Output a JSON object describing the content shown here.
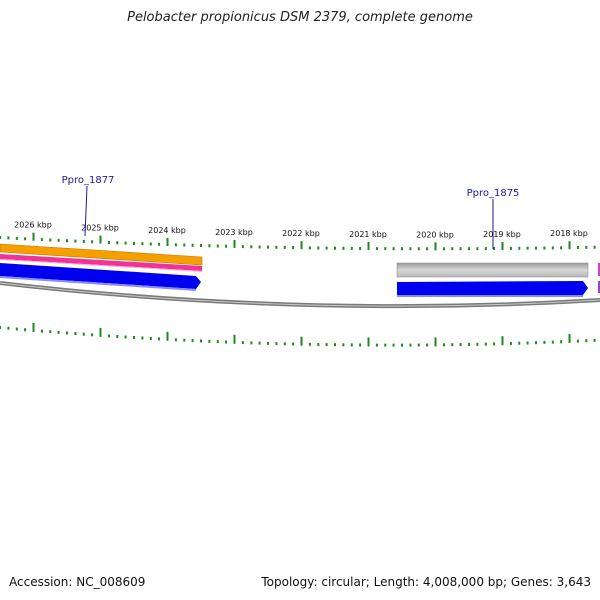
{
  "title": "Pelobacter propionicus DSM 2379, complete genome",
  "footer": {
    "accession": "Accession: NC_008609",
    "topology": "Topology: circular; Length: 4,008,000 bp; Genes: 3,643"
  },
  "ticks": [
    {
      "label": "2026 kbp",
      "kbp": 2026
    },
    {
      "label": "2025 kbp",
      "kbp": 2025
    },
    {
      "label": "2024 kbp",
      "kbp": 2024
    },
    {
      "label": "2023 kbp",
      "kbp": 2023
    },
    {
      "label": "2022 kbp",
      "kbp": 2022
    },
    {
      "label": "2021 kbp",
      "kbp": 2021
    },
    {
      "label": "2020 kbp",
      "kbp": 2020
    },
    {
      "label": "2019 kbp",
      "kbp": 2019
    },
    {
      "label": "2018 kbp",
      "kbp": 2018
    }
  ],
  "genes": [
    {
      "name": "Ppro_1877"
    },
    {
      "name": "Ppro_1875"
    }
  ],
  "colors": {
    "cds": "#0000ee",
    "gene_orange": "#f5a000",
    "gene_pink": "#ee3399",
    "gene_grey": "#bdbdbd",
    "backbone": "#777777",
    "tick": "#1c8a1c",
    "label": "#1a1aa0"
  }
}
